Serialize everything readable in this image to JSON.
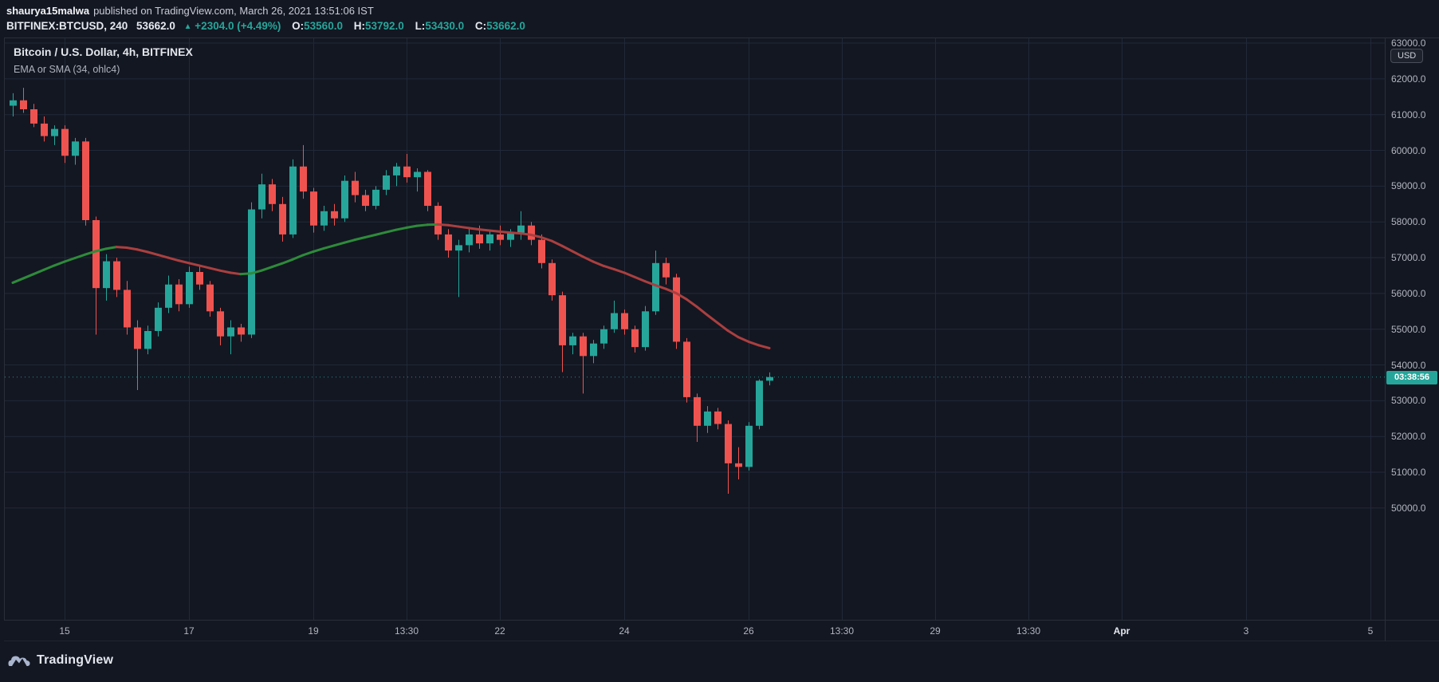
{
  "header": {
    "author": "shaurya15malwa",
    "published": "published on TradingView.com, March 26, 2021 13:51:06 IST",
    "symbol": "BITFINEX:BTCUSD, 240",
    "last_price": "53662.0",
    "change_icon": "▲",
    "change": "+2304.0 (+4.49%)",
    "ohlc": {
      "o_label": "O:",
      "o": "53560.0",
      "h_label": "H:",
      "h": "53792.0",
      "l_label": "L:",
      "l": "53430.0",
      "c_label": "C:",
      "c": "53662.0"
    }
  },
  "legend": {
    "title": "Bitcoin / U.S. Dollar, 4h, BITFINEX",
    "indicator": "EMA or SMA (34, ohlc4)"
  },
  "price_axis": {
    "currency_badge": "USD",
    "countdown": "03:38:56"
  },
  "footer": {
    "brand": "TradingView"
  },
  "chart_data": {
    "type": "candlestick",
    "symbol": "BITFINEX:BTCUSD",
    "interval": "240",
    "title": "Bitcoin / U.S. Dollar, 4h, BITFINEX",
    "indicator": "EMA or SMA (34, ohlc4)",
    "last_price": 53662,
    "ylim": [
      46875,
      63135
    ],
    "price_ticks": [
      63000,
      62000,
      61000,
      60000,
      59000,
      58000,
      57000,
      56000,
      55000,
      54000,
      53000,
      52000,
      51000,
      50000
    ],
    "time_labels": [
      {
        "t": "15",
        "i": 5
      },
      {
        "t": "17",
        "i": 17
      },
      {
        "t": "19",
        "i": 29
      },
      {
        "t": "13:30",
        "i": 38
      },
      {
        "t": "22",
        "i": 47
      },
      {
        "t": "24",
        "i": 59
      },
      {
        "t": "26",
        "i": 71
      },
      {
        "t": "13:30",
        "i": 80
      },
      {
        "t": "29",
        "i": 89
      },
      {
        "t": "13:30",
        "i": 98
      },
      {
        "t": "Apr",
        "i": 107,
        "major": true
      },
      {
        "t": "3",
        "i": 119
      },
      {
        "t": "5",
        "i": 131
      }
    ],
    "candles_ohlc": [
      [
        61250,
        61600,
        60950,
        61400
      ],
      [
        61400,
        61750,
        61050,
        61150
      ],
      [
        61150,
        61300,
        60650,
        60750
      ],
      [
        60750,
        60950,
        60250,
        60400
      ],
      [
        60400,
        60700,
        60150,
        60600
      ],
      [
        60600,
        60700,
        59650,
        59850
      ],
      [
        59850,
        60350,
        59600,
        60250
      ],
      [
        60250,
        60350,
        57900,
        58050
      ],
      [
        58050,
        58150,
        54850,
        56150
      ],
      [
        56150,
        57100,
        55800,
        56900
      ],
      [
        56900,
        57000,
        55900,
        56100
      ],
      [
        56100,
        56350,
        54850,
        55050
      ],
      [
        55050,
        55250,
        53300,
        54450
      ],
      [
        54450,
        55100,
        54300,
        54950
      ],
      [
        54950,
        55750,
        54800,
        55600
      ],
      [
        55600,
        56500,
        55450,
        56250
      ],
      [
        56250,
        56400,
        55500,
        55700
      ],
      [
        55700,
        56750,
        55600,
        56600
      ],
      [
        56600,
        56800,
        56100,
        56250
      ],
      [
        56250,
        56350,
        55350,
        55500
      ],
      [
        55500,
        55600,
        54550,
        54800
      ],
      [
        54800,
        55250,
        54300,
        55050
      ],
      [
        55050,
        55150,
        54650,
        54850
      ],
      [
        54850,
        58550,
        54750,
        58350
      ],
      [
        58350,
        59350,
        58100,
        59050
      ],
      [
        59050,
        59200,
        58300,
        58500
      ],
      [
        58500,
        58700,
        57450,
        57650
      ],
      [
        57650,
        59750,
        57550,
        59550
      ],
      [
        59550,
        60150,
        58650,
        58850
      ],
      [
        58850,
        58950,
        57700,
        57900
      ],
      [
        57900,
        58450,
        57750,
        58300
      ],
      [
        58300,
        58500,
        57900,
        58100
      ],
      [
        58100,
        59300,
        58000,
        59150
      ],
      [
        59150,
        59400,
        58550,
        58750
      ],
      [
        58750,
        58900,
        58300,
        58450
      ],
      [
        58450,
        59000,
        58350,
        58900
      ],
      [
        58900,
        59450,
        58750,
        59300
      ],
      [
        59300,
        59650,
        59000,
        59550
      ],
      [
        59550,
        59900,
        59100,
        59250
      ],
      [
        59250,
        59500,
        58850,
        59400
      ],
      [
        59400,
        59450,
        58300,
        58450
      ],
      [
        58450,
        58550,
        57500,
        57650
      ],
      [
        57650,
        57800,
        57000,
        57200
      ],
      [
        57200,
        57500,
        55900,
        57350
      ],
      [
        57350,
        57800,
        57150,
        57650
      ],
      [
        57650,
        57900,
        57250,
        57400
      ],
      [
        57400,
        57750,
        57200,
        57650
      ],
      [
        57650,
        57900,
        57350,
        57500
      ],
      [
        57500,
        57800,
        57300,
        57700
      ],
      [
        57700,
        58300,
        57500,
        57900
      ],
      [
        57900,
        58000,
        57350,
        57500
      ],
      [
        57500,
        57650,
        56700,
        56850
      ],
      [
        56850,
        56950,
        55800,
        55950
      ],
      [
        55950,
        56050,
        53800,
        54550
      ],
      [
        54550,
        54900,
        54300,
        54800
      ],
      [
        54800,
        54900,
        53200,
        54250
      ],
      [
        54250,
        54700,
        54050,
        54600
      ],
      [
        54600,
        55100,
        54450,
        55000
      ],
      [
        55000,
        55800,
        54900,
        55450
      ],
      [
        55450,
        55550,
        54850,
        55000
      ],
      [
        55000,
        55100,
        54350,
        54500
      ],
      [
        54500,
        55650,
        54400,
        55500
      ],
      [
        55500,
        57200,
        55400,
        56850
      ],
      [
        56850,
        57000,
        56250,
        56450
      ],
      [
        56450,
        56550,
        54450,
        54650
      ],
      [
        54650,
        54750,
        52950,
        53100
      ],
      [
        53100,
        53200,
        51850,
        52300
      ],
      [
        52300,
        52850,
        52100,
        52700
      ],
      [
        52700,
        52800,
        52200,
        52350
      ],
      [
        52350,
        52450,
        50400,
        51250
      ],
      [
        51250,
        51700,
        50800,
        51150
      ],
      [
        51150,
        52400,
        51050,
        52300
      ],
      [
        52300,
        53600,
        52200,
        53560
      ],
      [
        53560,
        53792,
        53430,
        53662
      ]
    ],
    "ma_values": [
      56300,
      56420,
      56540,
      56660,
      56780,
      56890,
      56990,
      57090,
      57180,
      57250,
      57300,
      57280,
      57230,
      57160,
      57080,
      57000,
      56920,
      56850,
      56780,
      56710,
      56640,
      56580,
      56540,
      56560,
      56640,
      56740,
      56840,
      56950,
      57070,
      57170,
      57260,
      57340,
      57420,
      57500,
      57570,
      57640,
      57710,
      57780,
      57840,
      57890,
      57920,
      57930,
      57910,
      57870,
      57830,
      57790,
      57760,
      57730,
      57700,
      57680,
      57640,
      57570,
      57470,
      57330,
      57180,
      57030,
      56890,
      56770,
      56680,
      56580,
      56460,
      56340,
      56230,
      56130,
      56010,
      55840,
      55630,
      55400,
      55180,
      54960,
      54780,
      54650,
      54550,
      54470
    ],
    "colors": {
      "background": "#131722",
      "grid": "#222838",
      "up": "#26a69a",
      "down": "#ef5350",
      "ma_up": "#2e8b3a",
      "ma_down": "#ab3f3f",
      "axis_text": "#b2b5be",
      "accent": "#26a69a"
    }
  }
}
